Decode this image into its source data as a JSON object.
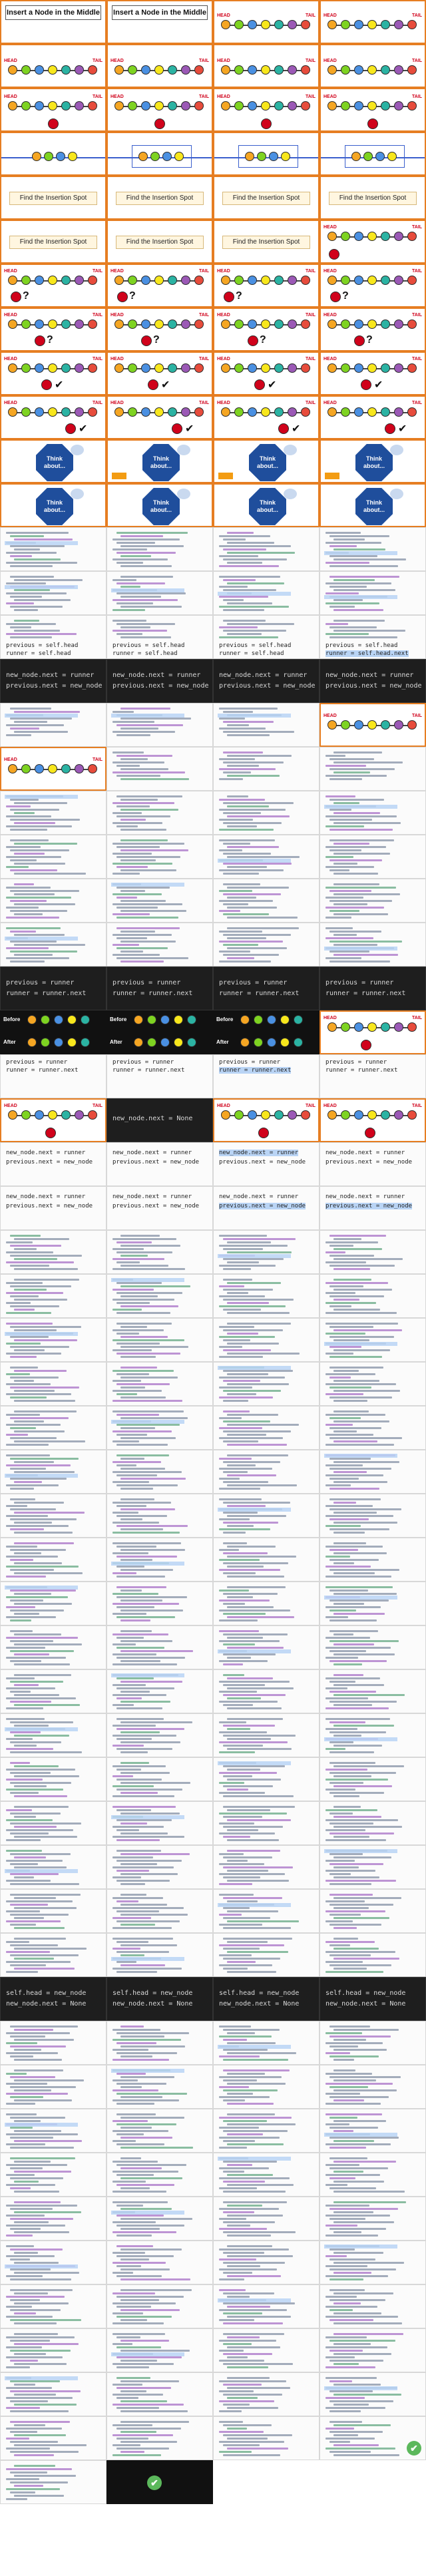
{
  "slides": {
    "title": "Insert a Node in the Middle",
    "find_spot": "Find the Insertion Spot",
    "think": "Think about...",
    "head_label": "HEAD",
    "tail_label": "TAIL",
    "before_label": "Before",
    "after_label": "After",
    "question_mark": "?",
    "check_mark": "✔"
  },
  "code": {
    "line_head": "previous = self.head",
    "line_runner": "runner = self.head.next",
    "line_runner_short": "runner = self.head",
    "line_newnode_runner": "new_node.next = runner",
    "line_prev_newnode": "previous.next = new_node",
    "line_prev_runner": "previous = runner",
    "line_runner_next": "runner = runner.next",
    "line_newnode_next_none": "new_node.next = None",
    "line_self_head_newnode": "self.head = new_node"
  },
  "node_colors": [
    "#f5a623",
    "#7ed321",
    "#4a90e2",
    "#f8e71c",
    "#2bb3a3",
    "#9b59b6",
    "#e74c3c"
  ],
  "new_node_color": "#d0021b",
  "accent": "#e67e22",
  "highlight": "#b9d4f5",
  "icons": {
    "arrow": "arrow-icon",
    "check": "check-icon"
  }
}
